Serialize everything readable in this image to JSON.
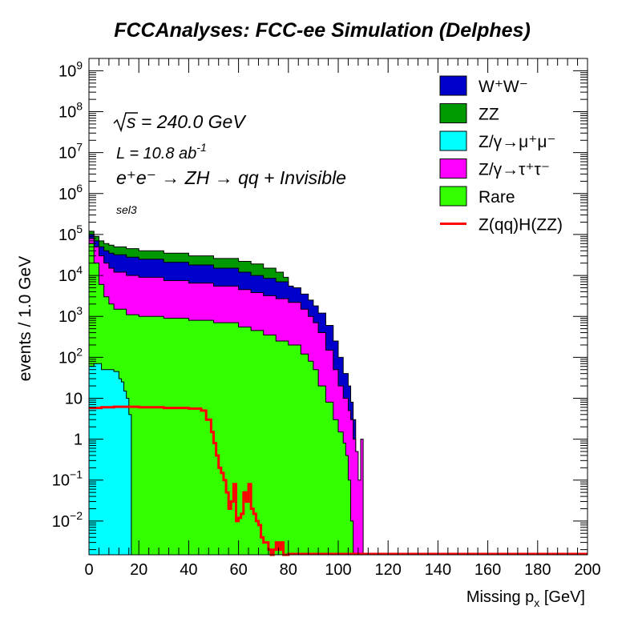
{
  "chart_data": {
    "type": "area",
    "title": "FCCAnalyses: FCC-ee Simulation (Delphes)",
    "xlabel": "Missing p",
    "xlabel_sub": "x",
    "xlabel_unit": "[GeV]",
    "ylabel": "events / 1.0 GeV",
    "xlim": [
      0,
      200
    ],
    "ylim": [
      0.0015,
      2000000000
    ],
    "y_scale": "log",
    "stacked": true,
    "grid": false,
    "legend_position": "top-right",
    "x_ticks": [
      "0",
      "20",
      "40",
      "60",
      "80",
      "100",
      "120",
      "140",
      "160",
      "180",
      "200"
    ],
    "y_ticks": [
      {
        "value": 0.01,
        "base": "10",
        "exp": "−2"
      },
      {
        "value": 0.1,
        "base": "10",
        "exp": "−1"
      },
      {
        "value": 1,
        "label": "1"
      },
      {
        "value": 10,
        "label": "10"
      },
      {
        "value": 100,
        "base": "10",
        "exp": "2"
      },
      {
        "value": 1000,
        "base": "10",
        "exp": "3"
      },
      {
        "value": 10000,
        "base": "10",
        "exp": "4"
      },
      {
        "value": 100000,
        "base": "10",
        "exp": "5"
      },
      {
        "value": 1000000,
        "base": "10",
        "exp": "6"
      },
      {
        "value": 10000000,
        "base": "10",
        "exp": "7"
      },
      {
        "value": 100000000,
        "base": "10",
        "exp": "8"
      },
      {
        "value": 1000000000,
        "base": "10",
        "exp": "9"
      }
    ],
    "annotations": {
      "sqrt_s": "s = 240.0 GeV",
      "lumi": "L = 10.8 ab",
      "lumi_exp": "-1",
      "process": "e⁺e⁻ → ZH → qq + Invisible",
      "selection": "sel3"
    },
    "stack_cumulative_edges": [
      {
        "name": "Z/γ→μ⁺μ⁻",
        "color": "#00ffff",
        "x": [
          0,
          2,
          5,
          10,
          12,
          13,
          14,
          15,
          16,
          17,
          17
        ],
        "y": [
          60,
          70,
          50,
          45,
          30,
          25,
          15,
          10,
          4,
          0.002,
          0.0015
        ]
      },
      {
        "name": "Rare",
        "color": "#33ff00",
        "x": [
          0,
          2,
          4,
          6,
          8,
          10,
          15,
          20,
          30,
          40,
          50,
          60,
          65,
          70,
          75,
          80,
          85,
          88,
          90,
          92,
          95,
          98,
          100,
          102,
          103,
          104,
          105,
          106
        ],
        "y": [
          60000,
          20000,
          6000,
          3000,
          2000,
          1500,
          1100,
          1000,
          900,
          800,
          700,
          550,
          450,
          350,
          250,
          200,
          120,
          80,
          50,
          20,
          8,
          3,
          1.5,
          0.8,
          0.4,
          0.1,
          0.01,
          0.0015
        ]
      },
      {
        "name": "Z/γ→τ⁺τ⁻",
        "color": "#ff00ff",
        "x": [
          0,
          2,
          4,
          6,
          8,
          10,
          15,
          20,
          30,
          40,
          50,
          60,
          65,
          70,
          75,
          80,
          85,
          88,
          90,
          92,
          95,
          98,
          100,
          102,
          104,
          105,
          106,
          107,
          108,
          109,
          110
        ],
        "y": [
          80000,
          50000,
          30000,
          20000,
          15000,
          12000,
          10000,
          9000,
          7500,
          6500,
          5500,
          4500,
          3800,
          3200,
          2700,
          2200,
          1500,
          1000,
          700,
          400,
          150,
          50,
          20,
          10,
          5,
          3,
          1,
          0.5,
          0.1,
          1,
          0.0015
        ]
      },
      {
        "name": "W⁺W⁻",
        "color": "#0000cc",
        "x": [
          0,
          2,
          4,
          6,
          8,
          10,
          15,
          20,
          30,
          40,
          50,
          60,
          65,
          70,
          75,
          80,
          82,
          85,
          88,
          90,
          92,
          95,
          98,
          100,
          102,
          104,
          105,
          106,
          107
        ],
        "y": [
          100000,
          70000,
          50000,
          40000,
          35000,
          32000,
          28000,
          25000,
          21000,
          18000,
          15000,
          12000,
          10000,
          8500,
          7000,
          5500,
          5000,
          3500,
          2500,
          1800,
          1200,
          600,
          250,
          100,
          40,
          20,
          8,
          3,
          0.5
        ]
      },
      {
        "name": "ZZ",
        "color": "#009900",
        "x": [
          0,
          2,
          4,
          6,
          8,
          10,
          15,
          20,
          30,
          40,
          50,
          60,
          65,
          70,
          75,
          78,
          80
        ],
        "y": [
          120000,
          90000,
          70000,
          60000,
          55000,
          50000,
          45000,
          40000,
          35000,
          30000,
          26000,
          22000,
          19000,
          15000,
          12000,
          9000,
          7000
        ]
      }
    ],
    "overlay": {
      "name": "Z(qq)H(ZZ)",
      "color": "#ff0000",
      "x": [
        0,
        5,
        10,
        20,
        30,
        40,
        45,
        47,
        49,
        50,
        51,
        52,
        53,
        54,
        55,
        56,
        57,
        58,
        59,
        60,
        61,
        62,
        63,
        64,
        65,
        66,
        67,
        68,
        69,
        70,
        71,
        72,
        73,
        74,
        75,
        76,
        77,
        78,
        79,
        80
      ],
      "y": [
        5.8,
        6.0,
        6.2,
        6.0,
        5.8,
        5.6,
        5.0,
        3.0,
        1.5,
        0.8,
        0.4,
        0.2,
        0.15,
        0.1,
        0.05,
        0.02,
        0.03,
        0.08,
        0.01,
        0.012,
        0.015,
        0.05,
        0.03,
        0.08,
        0.02,
        0.015,
        0.01,
        0.008,
        0.004,
        0.003,
        0.003,
        0.002,
        0.0015,
        0.002,
        0.003,
        0.002,
        0.003,
        0.0015,
        0.0015,
        0.0015
      ]
    },
    "legend": [
      {
        "label": "W⁺W⁻",
        "color": "#0000cc",
        "kind": "fill"
      },
      {
        "label": "ZZ",
        "color": "#009900",
        "kind": "fill"
      },
      {
        "label": "Z/γ→μ⁺μ⁻",
        "color": "#00ffff",
        "kind": "fill"
      },
      {
        "label": "Z/γ→τ⁺τ⁻",
        "color": "#ff00ff",
        "kind": "fill"
      },
      {
        "label": "Rare",
        "color": "#33ff00",
        "kind": "fill"
      },
      {
        "label": "Z(qq)H(ZZ)",
        "color": "#ff0000",
        "kind": "line"
      }
    ]
  }
}
